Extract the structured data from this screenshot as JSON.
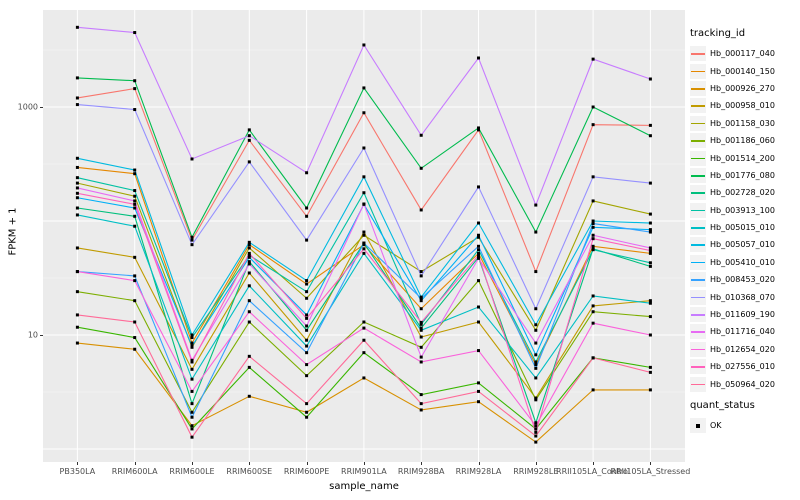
{
  "chart_data": {
    "type": "line",
    "xlabel": "sample_name",
    "ylabel": "FPKM + 1",
    "y_scale": "log10",
    "ylim": [
      0.78,
      7100
    ],
    "grid": true,
    "y_ticks": [
      {
        "label": "1000",
        "value": 1000
      },
      {
        "label": "10",
        "value": 10
      }
    ],
    "y_gridlines_major": [
      1,
      10,
      100,
      1000
    ],
    "y_gridlines_minor": [
      3.162,
      31.62,
      316.2,
      3162
    ],
    "categories": [
      "PB350LA",
      "RRIM600LA",
      "RRIM600LE",
      "RRIM600SE",
      "RRIM600PE",
      "RRIM901LA",
      "RRIM928BA",
      "RRIM928LA",
      "RRIM928LE",
      "RRII105LA_Control",
      "RRII105LA_Stressed"
    ],
    "legend": {
      "title": "tracking_id",
      "position": "right"
    },
    "quant_legend": {
      "title": "quant_status",
      "items": [
        {
          "label": "OK",
          "marker": "black-square"
        }
      ]
    },
    "marker": {
      "shape": "square",
      "color": "#000000",
      "size": 3
    },
    "series": [
      {
        "name": "Hb_000117_040",
        "color": "#F8766D",
        "values": [
          1200,
          1450,
          68,
          510,
          110,
          890,
          125,
          630,
          36,
          700,
          690
        ]
      },
      {
        "name": "Hb_000140_150",
        "color": "#E58700",
        "values": [
          295,
          260,
          8.5,
          62,
          28,
          62,
          17,
          52,
          5.5,
          60,
          52
        ]
      },
      {
        "name": "Hb_000926_270",
        "color": "#D89000",
        "values": [
          8.5,
          7.5,
          1.6,
          2.9,
          2.1,
          4.2,
          2.2,
          2.6,
          1.15,
          3.3,
          3.3
        ]
      },
      {
        "name": "Hb_000958_010",
        "color": "#C09B00",
        "values": [
          58,
          48,
          5.0,
          35,
          9.0,
          80,
          9.6,
          13,
          2.8,
          18,
          20
        ]
      },
      {
        "name": "Hb_001158_030",
        "color": "#A3A500",
        "values": [
          215,
          165,
          7.8,
          58,
          21,
          75,
          36,
          72,
          11,
          150,
          115
        ]
      },
      {
        "name": "Hb_001186_060",
        "color": "#7CAE00",
        "values": [
          24,
          20,
          2.1,
          13,
          4.4,
          13,
          7.8,
          30,
          2.7,
          16,
          14.5
        ]
      },
      {
        "name": "Hb_001514_200",
        "color": "#39B600",
        "values": [
          11.7,
          9.5,
          1.5,
          5.2,
          1.9,
          7.0,
          3.0,
          3.8,
          1.5,
          6.3,
          5.2
        ]
      },
      {
        "name": "Hb_001776_080",
        "color": "#00BB4E",
        "values": [
          1800,
          1700,
          72,
          630,
          130,
          1470,
          290,
          655,
          80,
          1000,
          560
        ]
      },
      {
        "name": "Hb_002728_020",
        "color": "#00BF7D",
        "values": [
          130,
          110,
          2.5,
          44,
          11,
          64,
          11.5,
          48,
          1.7,
          57,
          40
        ]
      },
      {
        "name": "Hb_003913_100",
        "color": "#00C1A3",
        "values": [
          240,
          185,
          9.5,
          50,
          24,
          177,
          12.4,
          56,
          5.8,
          56,
          43
        ]
      },
      {
        "name": "Hb_005015_010",
        "color": "#00BFC4",
        "values": [
          113,
          90,
          4.1,
          27,
          8.0,
          52,
          11,
          17.6,
          4.2,
          22,
          19
        ]
      },
      {
        "name": "Hb_005057_010",
        "color": "#00BAE0",
        "values": [
          355,
          280,
          10,
          65,
          30,
          244,
          21.5,
          96,
          12.3,
          100,
          96
        ]
      },
      {
        "name": "Hb_005410_010",
        "color": "#00B0F6",
        "values": [
          160,
          130,
          8.0,
          48,
          15,
          140,
          20,
          75,
          6.7,
          88,
          84
        ]
      },
      {
        "name": "Hb_008453_020",
        "color": "#35A2FF",
        "values": [
          36,
          33,
          1.9,
          20,
          7.0,
          64,
          21,
          60,
          5.1,
          95,
          80
        ]
      },
      {
        "name": "Hb_010368_070",
        "color": "#9590FF",
        "values": [
          1050,
          950,
          62,
          330,
          68,
          437,
          33,
          199,
          17,
          244,
          215
        ]
      },
      {
        "name": "Hb_011609_190",
        "color": "#C77CFF",
        "values": [
          5000,
          4500,
          350,
          560,
          265,
          3500,
          565,
          2690,
          138,
          2630,
          1760
        ]
      },
      {
        "name": "Hb_011716_040",
        "color": "#E76BF3",
        "values": [
          195,
          150,
          6.0,
          42,
          12,
          141,
          6.4,
          47,
          8.5,
          75,
          58
        ]
      },
      {
        "name": "Hb_012654_020",
        "color": "#FA62DB",
        "values": [
          36,
          30,
          3.2,
          16,
          5.5,
          11.5,
          5.8,
          7.3,
          1.6,
          12.7,
          10
        ]
      },
      {
        "name": "Hb_027556_010",
        "color": "#FF62BC",
        "values": [
          175,
          140,
          5.8,
          52,
          14,
          57,
          12.9,
          50,
          1.4,
          70,
          55
        ]
      },
      {
        "name": "Hb_050964_020",
        "color": "#FF6A98",
        "values": [
          15,
          13,
          1.27,
          6.5,
          2.5,
          9.0,
          2.5,
          3.2,
          1.3,
          6.3,
          4.7
        ]
      }
    ],
    "panel_background": "#EBEBEB",
    "gridline_color": "#FFFFFF"
  }
}
